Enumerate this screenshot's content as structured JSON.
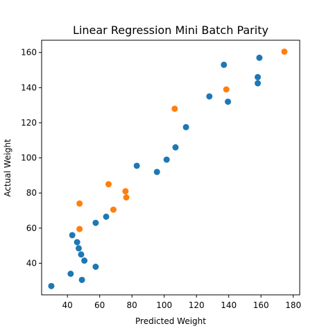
{
  "chart_data": {
    "type": "scatter",
    "title": "Linear Regression Mini Batch Parity",
    "xlabel": "Predicted Weight",
    "ylabel": "Actual Weight",
    "xlim": [
      24,
      184
    ],
    "ylim": [
      22,
      167
    ],
    "x_ticks": [
      40,
      60,
      80,
      100,
      120,
      140,
      160,
      180
    ],
    "y_ticks": [
      40,
      60,
      80,
      100,
      120,
      140,
      160
    ],
    "grid": false,
    "series": [
      {
        "color": "#1f77b4",
        "points": [
          [
            30,
            27
          ],
          [
            42,
            34
          ],
          [
            49,
            30.5
          ],
          [
            57.5,
            38
          ],
          [
            50.5,
            41.5
          ],
          [
            48.5,
            45
          ],
          [
            47,
            48.5
          ],
          [
            46,
            52
          ],
          [
            43,
            56
          ],
          [
            57.5,
            63
          ],
          [
            64,
            66.5
          ],
          [
            83,
            95.5
          ],
          [
            95.5,
            92
          ],
          [
            101.5,
            99
          ],
          [
            107,
            106
          ],
          [
            113.5,
            117.5
          ],
          [
            128,
            135
          ],
          [
            139.5,
            132
          ],
          [
            137,
            153
          ],
          [
            158,
            146
          ],
          [
            158,
            142.5
          ],
          [
            159,
            157
          ]
        ]
      },
      {
        "color": "#ff7f0e",
        "points": [
          [
            47.5,
            59.5
          ],
          [
            47.5,
            74
          ],
          [
            65.5,
            85
          ],
          [
            68.5,
            70.5
          ],
          [
            76,
            81
          ],
          [
            76.5,
            77.5
          ],
          [
            106.5,
            128
          ],
          [
            138.5,
            139
          ],
          [
            174.5,
            160.5
          ]
        ]
      }
    ]
  }
}
